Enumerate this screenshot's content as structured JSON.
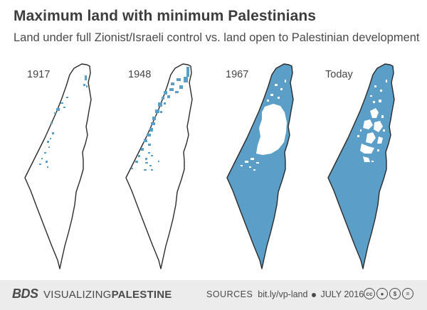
{
  "title": "Maximum land with minimum Palestinians",
  "subtitle": "Land under full Zionist/Israeli control vs. land open to Palestinian development",
  "colors": {
    "controlled": "#5b9fc8",
    "open": "#ffffff",
    "outline": "#2a2a2a",
    "footer_bg": "#ececec"
  },
  "maps": [
    {
      "year": "1917"
    },
    {
      "year": "1948"
    },
    {
      "year": "1967"
    },
    {
      "year": "Today"
    }
  ],
  "footer": {
    "brand": "BDS",
    "org_prefix": "VISUALIZING",
    "org_suffix": "PALESTINE",
    "sources_label": "SOURCES",
    "sources_url": "bit.ly/vp-land",
    "date": "JULY 2016",
    "license_icons": [
      "cc-icon",
      "by-icon",
      "nc-icon",
      "nd-icon"
    ]
  }
}
